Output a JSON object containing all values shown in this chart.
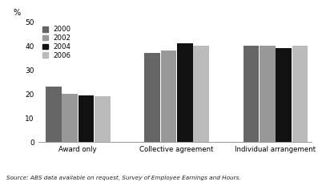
{
  "categories": [
    "Award only",
    "Collective agreement",
    "Individual arrangement"
  ],
  "years": [
    "2000",
    "2002",
    "2004",
    "2006"
  ],
  "values": {
    "Award only": [
      23,
      20,
      19.5,
      19
    ],
    "Collective agreement": [
      37,
      38,
      41,
      40
    ],
    "Individual arrangement": [
      40,
      40,
      39,
      40
    ]
  },
  "colors": [
    "#666666",
    "#999999",
    "#111111",
    "#bbbbbb"
  ],
  "ylim": [
    0,
    50
  ],
  "yticks": [
    0,
    10,
    20,
    30,
    40,
    50
  ],
  "ylabel": "%",
  "source_text": "Source: ABS data available on request, Survey of Employee Earnings and Hours.",
  "bar_width": 0.13,
  "group_centers": [
    0.28,
    1.1,
    1.92
  ]
}
